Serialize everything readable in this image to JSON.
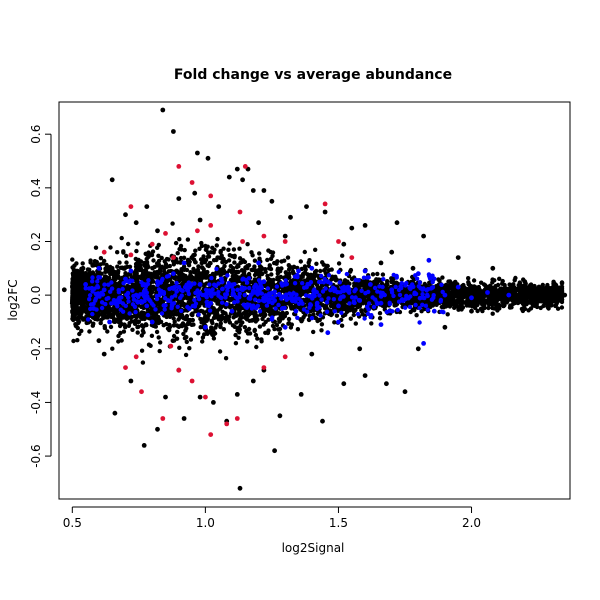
{
  "chart_data": {
    "type": "scatter",
    "title": "Fold change vs average abundance",
    "xlabel": "log2Signal",
    "ylabel": "log2FC",
    "xlim": [
      0.45,
      2.37
    ],
    "ylim": [
      -0.76,
      0.72
    ],
    "x_ticks": [
      0.5,
      1.0,
      1.5,
      2.0
    ],
    "x_tick_labels": [
      "0.5",
      "1.0",
      "1.5",
      "2.0"
    ],
    "y_ticks": [
      -0.6,
      -0.4,
      -0.2,
      0.0,
      0.2,
      0.4,
      0.6
    ],
    "y_tick_labels": [
      "-0.6",
      "-0.4",
      "-0.2",
      "0.0",
      "0.2",
      "0.4",
      "0.6"
    ],
    "grid": false,
    "colors": {
      "black": "#000000",
      "blue": "#0000ff",
      "red": "#dd1133"
    },
    "series": [
      {
        "color": "black",
        "points": [
          [
            0.84,
            0.69
          ],
          [
            0.88,
            0.61
          ],
          [
            0.97,
            0.53
          ],
          [
            1.01,
            0.51
          ],
          [
            0.65,
            0.43
          ],
          [
            1.09,
            0.44
          ],
          [
            1.12,
            0.47
          ],
          [
            1.16,
            0.47
          ],
          [
            1.14,
            0.43
          ],
          [
            1.18,
            0.39
          ],
          [
            1.22,
            0.39
          ],
          [
            0.96,
            0.38
          ],
          [
            0.9,
            0.36
          ],
          [
            1.05,
            0.33
          ],
          [
            0.78,
            0.33
          ],
          [
            1.25,
            0.35
          ],
          [
            1.38,
            0.33
          ],
          [
            1.45,
            0.31
          ],
          [
            1.32,
            0.29
          ],
          [
            1.6,
            0.26
          ],
          [
            1.72,
            0.27
          ],
          [
            1.55,
            0.25
          ],
          [
            1.82,
            0.22
          ],
          [
            0.7,
            0.3
          ],
          [
            0.74,
            0.27
          ],
          [
            0.82,
            0.24
          ],
          [
            0.98,
            0.28
          ],
          [
            1.2,
            0.27
          ],
          [
            1.3,
            0.22
          ],
          [
            1.52,
            0.19
          ],
          [
            1.7,
            0.16
          ],
          [
            1.95,
            0.14
          ],
          [
            2.08,
            0.1
          ],
          [
            2.2,
            0.05
          ],
          [
            2.3,
            0.01
          ],
          [
            2.35,
            0.0
          ],
          [
            0.47,
            0.02
          ],
          [
            0.5,
            -0.03
          ],
          [
            0.6,
            -0.17
          ],
          [
            0.62,
            -0.22
          ],
          [
            0.66,
            -0.44
          ],
          [
            0.77,
            -0.56
          ],
          [
            0.82,
            -0.5
          ],
          [
            0.92,
            -0.46
          ],
          [
            0.98,
            -0.38
          ],
          [
            1.03,
            -0.4
          ],
          [
            1.08,
            -0.47
          ],
          [
            1.12,
            -0.37
          ],
          [
            1.13,
            -0.72
          ],
          [
            1.26,
            -0.58
          ],
          [
            1.28,
            -0.45
          ],
          [
            1.36,
            -0.37
          ],
          [
            1.44,
            -0.47
          ],
          [
            1.52,
            -0.33
          ],
          [
            1.6,
            -0.3
          ],
          [
            1.68,
            -0.33
          ],
          [
            1.75,
            -0.36
          ],
          [
            1.8,
            -0.2
          ],
          [
            1.9,
            -0.12
          ],
          [
            2.0,
            -0.06
          ],
          [
            1.18,
            -0.32
          ],
          [
            0.85,
            -0.38
          ],
          [
            0.72,
            -0.32
          ],
          [
            0.9,
            -0.28
          ],
          [
            1.22,
            -0.28
          ],
          [
            1.4,
            -0.22
          ],
          [
            1.58,
            -0.2
          ],
          [
            0.54,
            0.1
          ],
          [
            0.56,
            -0.1
          ],
          [
            1.66,
            0.12
          ],
          [
            1.78,
            0.1
          ],
          [
            2.12,
            -0.04
          ],
          [
            2.25,
            -0.02
          ]
        ]
      },
      {
        "color": "red",
        "points": [
          [
            0.9,
            0.48
          ],
          [
            1.15,
            0.48
          ],
          [
            0.95,
            0.42
          ],
          [
            1.02,
            0.37
          ],
          [
            1.45,
            0.34
          ],
          [
            0.72,
            0.33
          ],
          [
            1.13,
            0.31
          ],
          [
            1.02,
            0.26
          ],
          [
            0.97,
            0.24
          ],
          [
            1.22,
            0.22
          ],
          [
            1.3,
            0.2
          ],
          [
            1.5,
            0.2
          ],
          [
            0.8,
            0.19
          ],
          [
            0.62,
            0.16
          ],
          [
            0.72,
            0.15
          ],
          [
            0.88,
            0.14
          ],
          [
            1.14,
            0.2
          ],
          [
            1.55,
            0.14
          ],
          [
            0.85,
            0.23
          ],
          [
            0.87,
            -0.19
          ],
          [
            0.74,
            -0.23
          ],
          [
            0.9,
            -0.28
          ],
          [
            0.95,
            -0.32
          ],
          [
            1.0,
            -0.38
          ],
          [
            1.12,
            -0.46
          ],
          [
            0.84,
            -0.46
          ],
          [
            1.02,
            -0.52
          ],
          [
            1.08,
            -0.48
          ],
          [
            1.22,
            -0.27
          ],
          [
            1.3,
            -0.23
          ],
          [
            0.76,
            -0.36
          ],
          [
            0.7,
            -0.27
          ]
        ]
      },
      {
        "color": "blue",
        "points": [
          [
            0.55,
            0.04
          ],
          [
            0.58,
            -0.05
          ],
          [
            0.62,
            0.02
          ],
          [
            0.66,
            -0.03
          ],
          [
            0.7,
            0.06
          ],
          [
            0.74,
            0.0
          ],
          [
            0.78,
            -0.04
          ],
          [
            0.82,
            0.05
          ],
          [
            0.86,
            -0.02
          ],
          [
            0.9,
            0.03
          ],
          [
            0.94,
            -0.05
          ],
          [
            0.98,
            0.04
          ],
          [
            1.02,
            -0.03
          ],
          [
            1.06,
            0.06
          ],
          [
            1.1,
            -0.06
          ],
          [
            1.14,
            0.02
          ],
          [
            1.18,
            -0.04
          ],
          [
            1.22,
            0.05
          ],
          [
            1.26,
            -0.02
          ],
          [
            1.3,
            0.04
          ],
          [
            1.34,
            -0.06
          ],
          [
            1.38,
            0.03
          ],
          [
            1.42,
            -0.03
          ],
          [
            1.46,
            0.05
          ],
          [
            1.5,
            -0.04
          ],
          [
            1.54,
            0.02
          ],
          [
            1.58,
            -0.02
          ],
          [
            1.62,
            0.04
          ],
          [
            1.66,
            -0.03
          ],
          [
            1.7,
            0.02
          ],
          [
            1.74,
            -0.02
          ],
          [
            1.8,
            0.08
          ],
          [
            1.84,
            0.13
          ],
          [
            1.86,
            -0.06
          ],
          [
            1.9,
            0.0
          ],
          [
            1.95,
            0.03
          ],
          [
            2.0,
            -0.01
          ],
          [
            2.06,
            0.01
          ],
          [
            2.14,
            0.0
          ],
          [
            0.6,
            0.1
          ],
          [
            0.64,
            -0.1
          ],
          [
            0.72,
            0.09
          ],
          [
            0.8,
            -0.1
          ],
          [
            0.92,
            0.12
          ],
          [
            1.0,
            -0.12
          ],
          [
            1.2,
            0.12
          ],
          [
            1.3,
            -0.12
          ],
          [
            1.4,
            0.1
          ],
          [
            1.5,
            -0.1
          ],
          [
            1.6,
            0.09
          ],
          [
            1.82,
            -0.18
          ],
          [
            1.46,
            -0.14
          ],
          [
            1.66,
            -0.11
          ],
          [
            1.35,
            0.09
          ],
          [
            1.25,
            -0.09
          ],
          [
            0.88,
            0.08
          ]
        ]
      }
    ]
  }
}
